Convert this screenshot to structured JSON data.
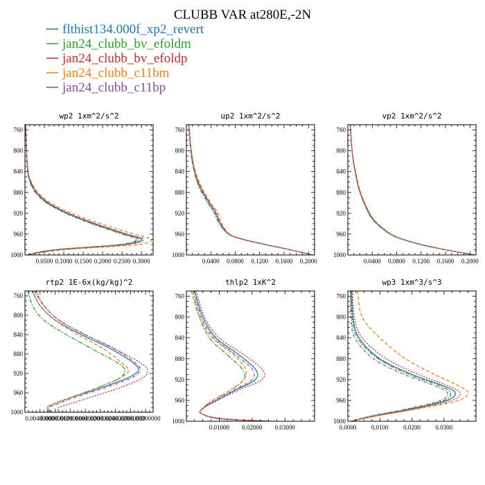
{
  "figure": {
    "title": "CLUBB VAR at280E,-2N"
  },
  "legend": {
    "entries": [
      {
        "label": "flthist134.000f_xp2_revert",
        "color": "#1f77b4"
      },
      {
        "label": "jan24_clubb_bv_efoldm",
        "color": "#2ca02c"
      },
      {
        "label": "jan24_clubb_bv_efoldp",
        "color": "#d62728"
      },
      {
        "label": "jan24_clubb_c11bm",
        "color": "#ff7f0e"
      },
      {
        "label": "jan24_clubb_c11bp",
        "color": "#7f4fa0"
      }
    ]
  },
  "chart_data": [
    {
      "type": "line",
      "title": "wp2  1xm^2/s^2",
      "xlim": [
        0,
        0.33
      ],
      "ylim": [
        750,
        1000
      ],
      "y_reversed": true,
      "yticks": [
        760,
        800,
        840,
        880,
        920,
        960,
        1000
      ],
      "xticks": [
        0.05,
        0.1,
        0.15,
        0.2,
        0.25,
        0.3
      ],
      "xticklabels": [
        "0.0500",
        "0.1000",
        "0.1500",
        "0.2000",
        "0.2500",
        "0.3000"
      ],
      "y": [
        750,
        800,
        840,
        860,
        880,
        900,
        920,
        940,
        960,
        970,
        980,
        990,
        1000
      ],
      "series": [
        {
          "color": "#1f77b4",
          "x": [
            0.002,
            0.004,
            0.008,
            0.015,
            0.03,
            0.06,
            0.11,
            0.18,
            0.26,
            0.3,
            0.255,
            0.08,
            0.005
          ]
        },
        {
          "color": "#2ca02c",
          "x": [
            0.002,
            0.004,
            0.007,
            0.013,
            0.027,
            0.055,
            0.105,
            0.172,
            0.25,
            0.288,
            0.243,
            0.075,
            0.005
          ]
        },
        {
          "color": "#d62728",
          "x": [
            0.002,
            0.004,
            0.008,
            0.015,
            0.03,
            0.061,
            0.112,
            0.182,
            0.263,
            0.305,
            0.26,
            0.083,
            0.005
          ]
        },
        {
          "color": "#ff7f0e",
          "x": [
            0.002,
            0.004,
            0.008,
            0.017,
            0.033,
            0.066,
            0.12,
            0.195,
            0.28,
            0.325,
            0.29,
            0.1,
            0.006
          ]
        },
        {
          "color": "#7f4fa0",
          "x": [
            0.002,
            0.004,
            0.007,
            0.014,
            0.028,
            0.057,
            0.107,
            0.175,
            0.255,
            0.292,
            0.25,
            0.078,
            0.005
          ]
        }
      ]
    },
    {
      "type": "line",
      "title": "up2  1xm^2/s^2",
      "xlim": [
        0,
        0.21
      ],
      "ylim": [
        750,
        1000
      ],
      "y_reversed": true,
      "yticks": [
        760,
        800,
        840,
        880,
        920,
        960,
        1000
      ],
      "xticks": [
        0.04,
        0.08,
        0.12,
        0.16,
        0.2
      ],
      "xticklabels": [
        "0.0400",
        "0.0800",
        "0.1200",
        "0.1600",
        "0.2000"
      ],
      "y": [
        750,
        800,
        840,
        870,
        900,
        920,
        940,
        960,
        970,
        980,
        990,
        1000
      ],
      "series": [
        {
          "color": "#1f77b4",
          "x": [
            0.004,
            0.008,
            0.014,
            0.023,
            0.038,
            0.049,
            0.056,
            0.07,
            0.093,
            0.13,
            0.17,
            0.207
          ]
        },
        {
          "color": "#2ca02c",
          "x": [
            0.004,
            0.007,
            0.013,
            0.021,
            0.035,
            0.046,
            0.054,
            0.069,
            0.092,
            0.129,
            0.17,
            0.207
          ]
        },
        {
          "color": "#d62728",
          "x": [
            0.004,
            0.008,
            0.014,
            0.023,
            0.038,
            0.049,
            0.056,
            0.07,
            0.093,
            0.13,
            0.17,
            0.207
          ]
        },
        {
          "color": "#ff7f0e",
          "x": [
            0.004,
            0.008,
            0.015,
            0.025,
            0.04,
            0.052,
            0.058,
            0.071,
            0.094,
            0.131,
            0.171,
            0.207
          ]
        },
        {
          "color": "#7f4fa0",
          "x": [
            0.004,
            0.007,
            0.013,
            0.022,
            0.036,
            0.047,
            0.055,
            0.069,
            0.092,
            0.129,
            0.17,
            0.207
          ]
        }
      ]
    },
    {
      "type": "line",
      "title": "vp2  1xm^2/s^2",
      "xlim": [
        0,
        0.21
      ],
      "ylim": [
        750,
        1000
      ],
      "y_reversed": true,
      "yticks": [
        760,
        800,
        840,
        880,
        920,
        960,
        1000
      ],
      "xticks": [
        0.04,
        0.08,
        0.12,
        0.16,
        0.2
      ],
      "xticklabels": [
        "0.0400",
        "0.0800",
        "0.1200",
        "0.1600",
        "0.2000"
      ],
      "y": [
        750,
        800,
        840,
        880,
        920,
        940,
        960,
        970,
        980,
        990,
        1000
      ],
      "series": [
        {
          "color": "#1f77b4",
          "x": [
            0.004,
            0.007,
            0.012,
            0.02,
            0.035,
            0.048,
            0.07,
            0.09,
            0.12,
            0.16,
            0.207
          ]
        },
        {
          "color": "#2ca02c",
          "x": [
            0.004,
            0.007,
            0.012,
            0.02,
            0.034,
            0.047,
            0.069,
            0.089,
            0.119,
            0.159,
            0.207
          ]
        },
        {
          "color": "#d62728",
          "x": [
            0.004,
            0.007,
            0.012,
            0.021,
            0.036,
            0.049,
            0.071,
            0.091,
            0.121,
            0.161,
            0.207
          ]
        },
        {
          "color": "#ff7f0e",
          "x": [
            0.004,
            0.007,
            0.013,
            0.021,
            0.036,
            0.049,
            0.071,
            0.091,
            0.121,
            0.161,
            0.207
          ]
        },
        {
          "color": "#7f4fa0",
          "x": [
            0.004,
            0.007,
            0.012,
            0.02,
            0.035,
            0.048,
            0.07,
            0.09,
            0.12,
            0.16,
            0.207
          ]
        }
      ]
    },
    {
      "type": "line",
      "title": "rtp2  1E-6x(kg/kg)^2",
      "xlim": [
        0,
        0.034
      ],
      "ylim": [
        750,
        1000
      ],
      "y_reversed": true,
      "yticks": [
        760,
        800,
        840,
        880,
        920,
        960,
        1000
      ],
      "xticks": [
        0.004,
        0.008,
        0.012,
        0.016,
        0.02,
        0.024,
        0.028,
        0.032
      ],
      "xticklabels": [
        "0.00400000",
        "0.00800000",
        "0.01200000",
        "0.01600000",
        "0.02000000",
        "0.02400000",
        "0.02800000",
        "0.03200000"
      ],
      "y": [
        750,
        780,
        810,
        840,
        870,
        900,
        915,
        930,
        950,
        970,
        985,
        990,
        1000
      ],
      "series": [
        {
          "color": "#1f77b4",
          "x": [
            0.002,
            0.004,
            0.008,
            0.015,
            0.023,
            0.029,
            0.03,
            0.027,
            0.02,
            0.012,
            0.007,
            0.006,
            0.0065
          ]
        },
        {
          "color": "#2ca02c",
          "x": [
            0.0008,
            0.002,
            0.005,
            0.011,
            0.018,
            0.025,
            0.0265,
            0.025,
            0.019,
            0.012,
            0.007,
            0.006,
            0.0063
          ]
        },
        {
          "color": "#d62728",
          "x": [
            0.003,
            0.005,
            0.009,
            0.016,
            0.024,
            0.031,
            0.0325,
            0.031,
            0.025,
            0.017,
            0.011,
            0.009,
            0.0085
          ]
        },
        {
          "color": "#ff7f0e",
          "x": [
            0.002,
            0.004,
            0.008,
            0.014,
            0.021,
            0.026,
            0.0275,
            0.025,
            0.019,
            0.012,
            0.007,
            0.006,
            0.0064
          ]
        },
        {
          "color": "#7f4fa0",
          "x": [
            0.0025,
            0.005,
            0.009,
            0.016,
            0.024,
            0.0295,
            0.0305,
            0.028,
            0.021,
            0.013,
            0.008,
            0.0065,
            0.0068
          ]
        }
      ]
    },
    {
      "type": "line",
      "title": "thlp2  1xK^2",
      "xlim": [
        0,
        0.039
      ],
      "ylim": [
        750,
        1000
      ],
      "y_reversed": true,
      "yticks": [
        760,
        800,
        840,
        880,
        920,
        960,
        1000
      ],
      "xticks": [
        0.01,
        0.02,
        0.03
      ],
      "xticklabels": [
        "0.01000",
        "0.02000",
        "0.03000"
      ],
      "y": [
        750,
        800,
        840,
        870,
        900,
        920,
        940,
        960,
        975,
        985,
        995,
        1000
      ],
      "series": [
        {
          "color": "#1f77b4",
          "x": [
            0.0025,
            0.005,
            0.009,
            0.0155,
            0.021,
            0.021,
            0.015,
            0.009,
            0.005,
            0.0045,
            0.01,
            0.025
          ]
        },
        {
          "color": "#2ca02c",
          "x": [
            0.002,
            0.004,
            0.007,
            0.012,
            0.017,
            0.0175,
            0.0135,
            0.008,
            0.005,
            0.0045,
            0.01,
            0.025
          ]
        },
        {
          "color": "#d62728",
          "x": [
            0.003,
            0.0055,
            0.01,
            0.017,
            0.023,
            0.023,
            0.016,
            0.0095,
            0.0052,
            0.0045,
            0.011,
            0.027
          ]
        },
        {
          "color": "#ff7f0e",
          "x": [
            0.0015,
            0.004,
            0.008,
            0.014,
            0.018,
            0.0175,
            0.0135,
            0.008,
            0.005,
            0.0045,
            0.01,
            0.025
          ]
        },
        {
          "color": "#7f4fa0",
          "x": [
            0.0025,
            0.0045,
            0.0085,
            0.0145,
            0.02,
            0.02,
            0.0145,
            0.0088,
            0.005,
            0.0045,
            0.01,
            0.025
          ]
        }
      ]
    },
    {
      "type": "line",
      "title": "wp3  1xm^3/s^3",
      "xlim": [
        0,
        0.04
      ],
      "ylim": [
        750,
        1000
      ],
      "y_reversed": true,
      "yticks": [
        760,
        800,
        840,
        880,
        920,
        960,
        1000
      ],
      "xticks": [
        0,
        0.01,
        0.02,
        0.03
      ],
      "xticklabels": [
        "0.0000",
        "0.0100",
        "0.0200",
        "0.0300"
      ],
      "y": [
        750,
        800,
        840,
        880,
        910,
        930,
        945,
        960,
        975,
        990,
        1000
      ],
      "series": [
        {
          "color": "#1f77b4",
          "x": [
            0.0012,
            0.0016,
            0.0035,
            0.01,
            0.02,
            0.029,
            0.0335,
            0.031,
            0.021,
            0.008,
            0.001
          ]
        },
        {
          "color": "#2ca02c",
          "x": [
            0.001,
            0.0013,
            0.003,
            0.0095,
            0.019,
            0.028,
            0.032,
            0.03,
            0.02,
            0.0075,
            0.001
          ]
        },
        {
          "color": "#d62728",
          "x": [
            0.0015,
            0.002,
            0.0045,
            0.012,
            0.022,
            0.0305,
            0.035,
            0.0325,
            0.022,
            0.0085,
            0.001
          ]
        },
        {
          "color": "#ff7f0e",
          "x": [
            0.003,
            0.0045,
            0.01,
            0.018,
            0.027,
            0.034,
            0.0375,
            0.0345,
            0.023,
            0.009,
            0.001
          ]
        },
        {
          "color": "#7f4fa0",
          "x": [
            0.0008,
            0.001,
            0.0022,
            0.008,
            0.0175,
            0.0265,
            0.031,
            0.029,
            0.0195,
            0.0072,
            0.001
          ]
        }
      ]
    }
  ]
}
